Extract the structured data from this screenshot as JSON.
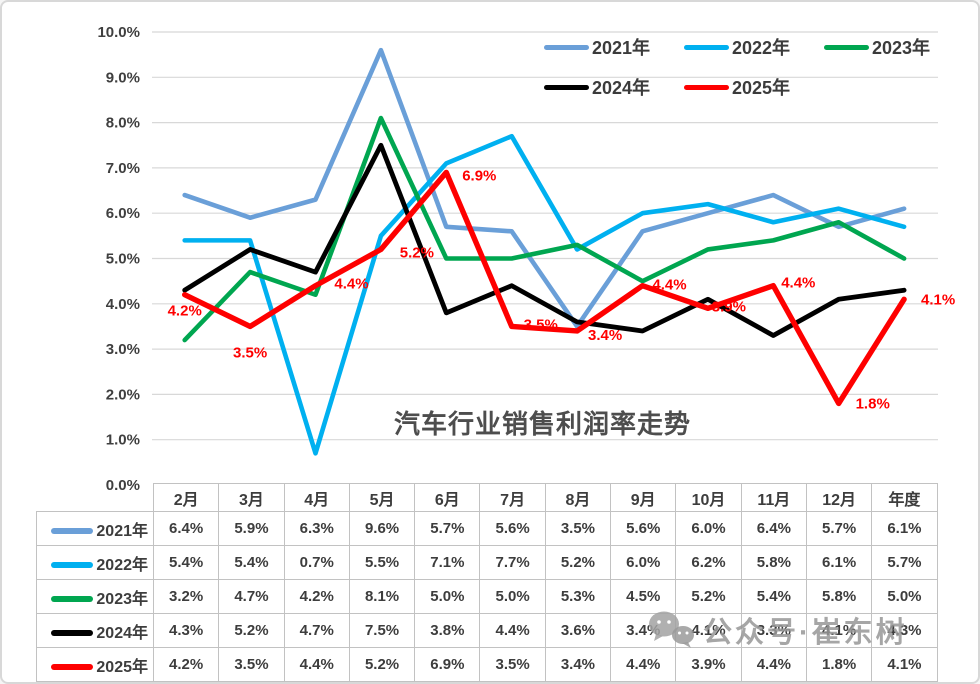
{
  "chart_data": {
    "type": "line",
    "title": "汽车行业销售利润率走势",
    "categories": [
      "2月",
      "3月",
      "4月",
      "5月",
      "6月",
      "7月",
      "8月",
      "9月",
      "10月",
      "11月",
      "12月",
      "年度"
    ],
    "ylim": [
      0,
      10
    ],
    "y_tick_labels": [
      "10.0%",
      "9.0%",
      "8.0%",
      "7.0%",
      "6.0%",
      "5.0%",
      "4.0%",
      "3.0%",
      "2.0%",
      "1.0%",
      "0.0%"
    ],
    "grid": true,
    "legend_position": "top-right",
    "series": [
      {
        "name": "2021年",
        "color": "#6A9FD8",
        "values": [
          6.4,
          5.9,
          6.3,
          9.6,
          5.7,
          5.6,
          3.5,
          5.6,
          6.0,
          6.4,
          5.7,
          6.1
        ]
      },
      {
        "name": "2022年",
        "color": "#00B0F0",
        "values": [
          5.4,
          5.4,
          0.7,
          5.5,
          7.1,
          7.7,
          5.2,
          6.0,
          6.2,
          5.8,
          6.1,
          5.7
        ]
      },
      {
        "name": "2023年",
        "color": "#00A650",
        "values": [
          3.2,
          4.7,
          4.2,
          8.1,
          5.0,
          5.0,
          5.3,
          4.5,
          5.2,
          5.4,
          5.8,
          5.0
        ]
      },
      {
        "name": "2024年",
        "color": "#000000",
        "values": [
          4.3,
          5.2,
          4.7,
          7.5,
          3.8,
          4.4,
          3.6,
          3.4,
          4.1,
          3.3,
          4.1,
          4.3
        ]
      },
      {
        "name": "2025年",
        "color": "#FE0000",
        "values": [
          4.2,
          3.5,
          4.4,
          5.2,
          6.9,
          3.5,
          3.4,
          4.4,
          3.9,
          4.4,
          1.8,
          4.1
        ],
        "data_labels": true,
        "label_color": "#FF0000"
      }
    ]
  },
  "table": {
    "corner_label": "",
    "header": [
      "2月",
      "3月",
      "4月",
      "5月",
      "6月",
      "7月",
      "8月",
      "9月",
      "10月",
      "11月",
      "12月",
      "年度"
    ],
    "rows": [
      {
        "label": "2021年",
        "color": "#6A9FD8",
        "values": [
          "6.4%",
          "5.9%",
          "6.3%",
          "9.6%",
          "5.7%",
          "5.6%",
          "3.5%",
          "5.6%",
          "6.0%",
          "6.4%",
          "5.7%",
          "6.1%"
        ]
      },
      {
        "label": "2022年",
        "color": "#00B0F0",
        "values": [
          "5.4%",
          "5.4%",
          "0.7%",
          "5.5%",
          "7.1%",
          "7.7%",
          "5.2%",
          "6.0%",
          "6.2%",
          "5.8%",
          "6.1%",
          "5.7%"
        ]
      },
      {
        "label": "2023年",
        "color": "#00A650",
        "values": [
          "3.2%",
          "4.7%",
          "4.2%",
          "8.1%",
          "5.0%",
          "5.0%",
          "5.3%",
          "4.5%",
          "5.2%",
          "5.4%",
          "5.8%",
          "5.0%"
        ]
      },
      {
        "label": "2024年",
        "color": "#000000",
        "values": [
          "4.3%",
          "5.2%",
          "4.7%",
          "7.5%",
          "3.8%",
          "4.4%",
          "3.6%",
          "3.4%",
          "4.1%",
          "3.3%",
          "4.1%",
          "4.3%"
        ]
      },
      {
        "label": "2025年",
        "color": "#FE0000",
        "values": [
          "4.2%",
          "3.5%",
          "4.4%",
          "5.2%",
          "6.9%",
          "3.5%",
          "3.4%",
          "4.4%",
          "3.9%",
          "4.4%",
          "1.8%",
          "4.1%"
        ]
      }
    ]
  },
  "watermark": {
    "text": "公众号·崔东树",
    "icon": "wechat-icon"
  }
}
